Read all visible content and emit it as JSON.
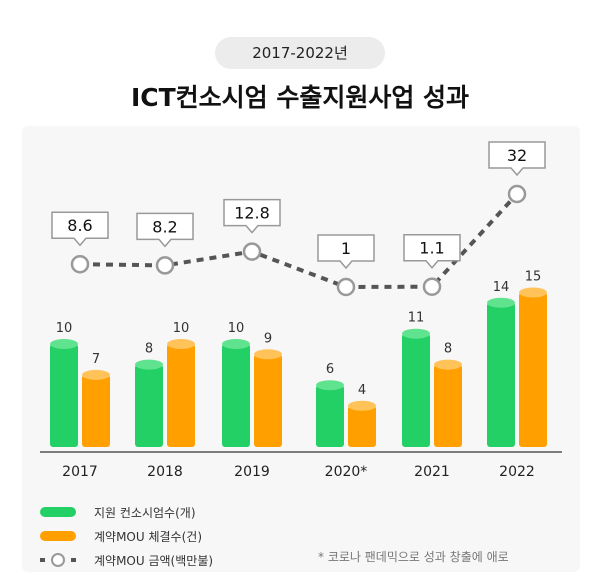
{
  "header": {
    "period": "2017-2022년",
    "title": "ICT컨소시엄 수출지원사업 성과"
  },
  "chart_data": {
    "type": "bar",
    "categories": [
      "2017",
      "2018",
      "2019",
      "2020*",
      "2021",
      "2022"
    ],
    "series": [
      {
        "name": "지원 컨소시엄수(개)",
        "type": "bar",
        "color": "#22d066",
        "values": [
          10,
          8,
          10,
          6,
          11,
          14
        ]
      },
      {
        "name": "계약MOU 체결수(건)",
        "type": "bar",
        "color": "#ffa000",
        "values": [
          7,
          10,
          9,
          4,
          8,
          15
        ]
      },
      {
        "name": "계약MOU 금액(백만불)",
        "type": "line",
        "style": "dashed",
        "color": "#555555",
        "values": [
          8.6,
          8.2,
          12.8,
          1,
          1.1,
          32
        ]
      }
    ],
    "grid": false,
    "legend": "bottom-left"
  },
  "legend": {
    "items": [
      "지원 컨소시엄수(개)",
      "계약MOU 체결수(건)",
      "계약MOU 금액(백만불)"
    ]
  },
  "footnote": "* 코로나 팬데믹으로 성과 창출에 애로"
}
